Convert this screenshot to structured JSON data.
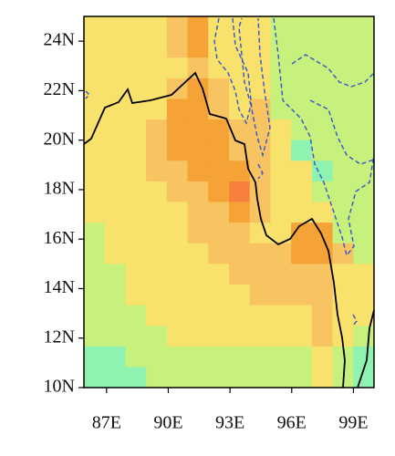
{
  "chart_data": {
    "type": "heatmap-map",
    "xlim": [
      85.9,
      100
    ],
    "ylim": [
      10,
      25
    ],
    "xticks": [
      {
        "value": 87,
        "label": "87E"
      },
      {
        "value": 90,
        "label": "90E"
      },
      {
        "value": 93,
        "label": "93E"
      },
      {
        "value": 96,
        "label": "96E"
      },
      {
        "value": 99,
        "label": "99E"
      }
    ],
    "yticks": [
      {
        "value": 10,
        "label": "10N"
      },
      {
        "value": 12,
        "label": "12N"
      },
      {
        "value": 14,
        "label": "14N"
      },
      {
        "value": 16,
        "label": "16N"
      },
      {
        "value": 18,
        "label": "18N"
      },
      {
        "value": 20,
        "label": "20N"
      },
      {
        "value": 22,
        "label": "22N"
      },
      {
        "value": 24,
        "label": "24N"
      }
    ]
  }
}
